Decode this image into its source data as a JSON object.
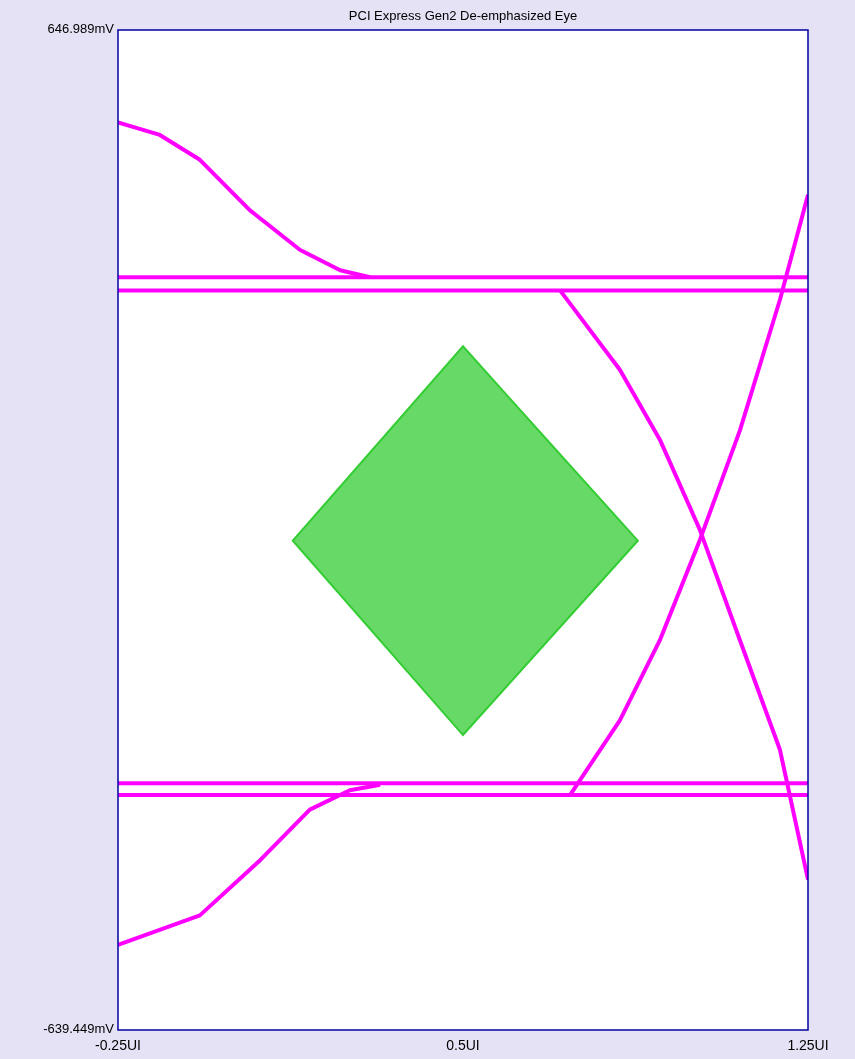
{
  "chart_data": {
    "type": "line",
    "title": "PCI Express Gen2 De-emphasized Eye",
    "xlim": [
      -0.25,
      1.25
    ],
    "ylim": [
      -639.449,
      646.989
    ],
    "xticks": [
      {
        "value": -0.25,
        "label": "-0.25UI"
      },
      {
        "value": 0.5,
        "label": "0.5UI"
      },
      {
        "value": 1.25,
        "label": "1.25UI"
      }
    ],
    "yticks": [
      {
        "value": -639.449,
        "label": "-639.449mV"
      },
      {
        "value": 646.989,
        "label": "646.989mV"
      }
    ],
    "grid": false,
    "line_style": "solid",
    "marker": "none",
    "series": [
      {
        "type": "area",
        "color": "#33cc33",
        "x": [
          0.13,
          0.5,
          0.88,
          0.5,
          0.13
        ],
        "values": [
          -10,
          240,
          -10,
          -260,
          -10
        ]
      },
      {
        "color": "#ff00ff",
        "x": [
          -0.25,
          1.25
        ],
        "values": [
          329,
          329
        ]
      },
      {
        "color": "#ff00ff",
        "x": [
          -0.25,
          1.25
        ],
        "values": [
          312,
          312
        ]
      },
      {
        "color": "#ff00ff",
        "x": [
          -0.25,
          1.25
        ],
        "values": [
          -322,
          -322
        ]
      },
      {
        "color": "#ff00ff",
        "x": [
          -0.25,
          1.25
        ],
        "values": [
          -337,
          -337
        ]
      },
      {
        "color": "#ff00ff",
        "x": [
          -0.25,
          -0.159,
          -0.072,
          0.037,
          0.146,
          0.233,
          0.298
        ],
        "values": [
          528,
          512,
          480,
          415,
          364,
          338,
          329
        ]
      },
      {
        "color": "#ff00ff",
        "x": [
          0.711,
          0.841,
          0.928,
          1.015,
          1.102,
          1.189,
          1.25
        ],
        "values": [
          312,
          210,
          120,
          4,
          -138,
          -279,
          -446
        ]
      },
      {
        "color": "#ff00ff",
        "x": [
          0.733,
          0.841,
          0.928,
          1.015,
          1.102,
          1.189,
          1.25
        ],
        "values": [
          -337,
          -241,
          -138,
          -9,
          132,
          300,
          435
        ]
      },
      {
        "color": "#ff00ff",
        "x": [
          -0.25,
          -0.072,
          0.059,
          0.167,
          0.254,
          0.32
        ],
        "values": [
          -530,
          -492,
          -421,
          -356,
          -331,
          -324
        ]
      }
    ]
  }
}
